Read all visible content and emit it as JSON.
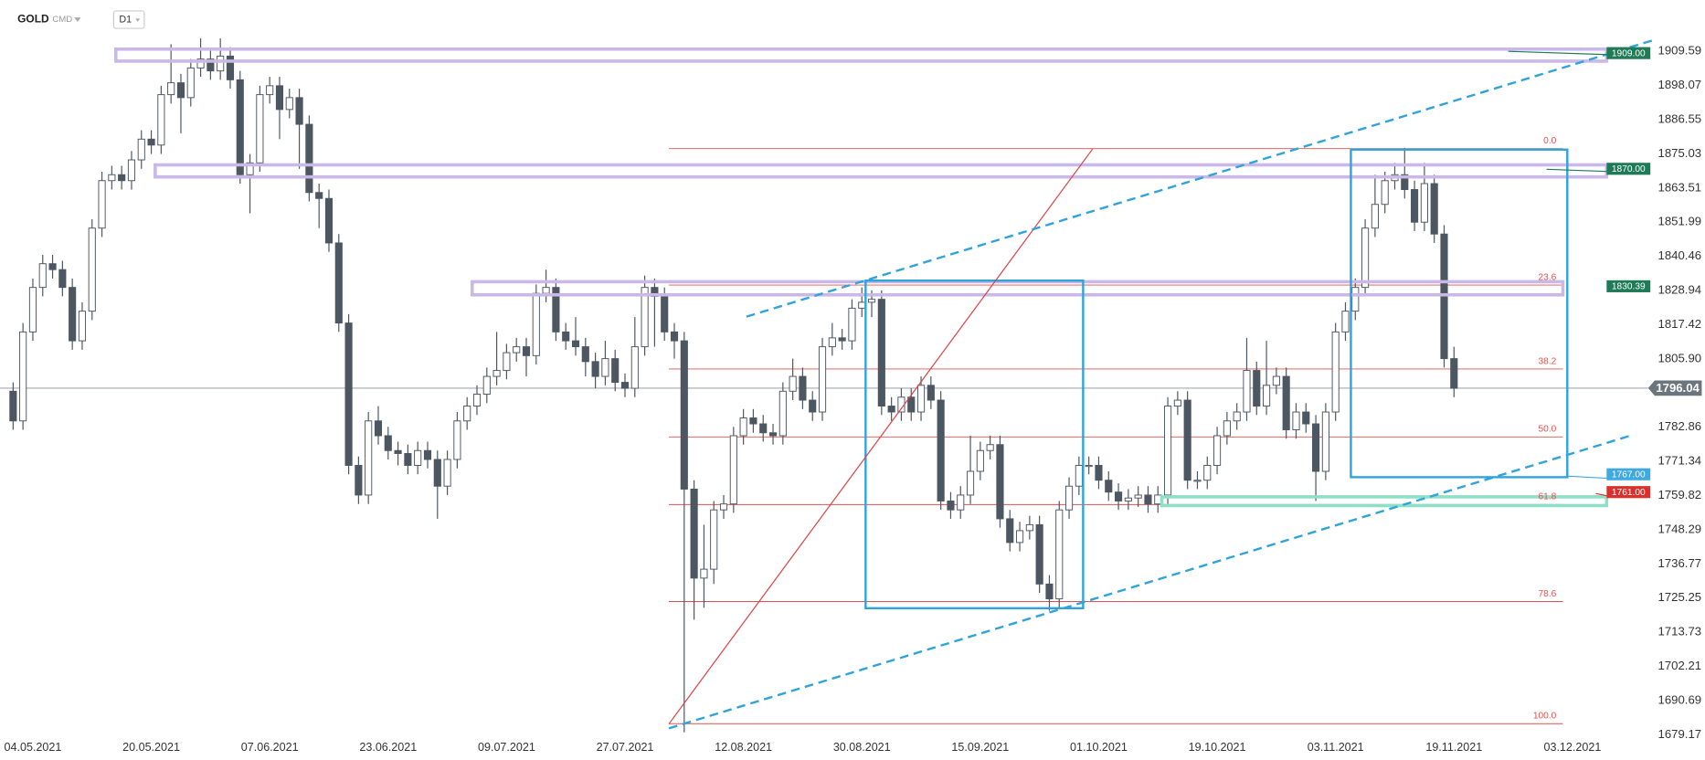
{
  "chart_data": {
    "type": "candlestick",
    "title": "GOLD",
    "subtitle": "CMD",
    "timeframe": "D1",
    "categories": [
      null,
      null,
      "04.05.2021",
      null,
      null,
      null,
      null,
      null,
      null,
      null,
      null,
      null,
      null,
      null,
      "20.05.2021",
      null,
      null,
      null,
      null,
      null,
      null,
      null,
      null,
      null,
      null,
      null,
      "07.06.2021",
      null,
      null,
      null,
      null,
      null,
      null,
      null,
      null,
      null,
      null,
      null,
      "23.06.2021",
      null,
      null,
      null,
      null,
      null,
      null,
      null,
      null,
      null,
      null,
      null,
      "09.07.2021",
      null,
      null,
      null,
      null,
      null,
      null,
      null,
      null,
      null,
      null,
      null,
      "27.07.2021",
      null,
      null,
      null,
      null,
      null,
      null,
      null,
      null,
      null,
      null,
      null,
      "12.08.2021",
      null,
      null,
      null,
      null,
      null,
      null,
      null,
      null,
      null,
      null,
      null,
      "30.08.2021",
      null,
      null,
      null,
      null,
      null,
      null,
      null,
      null,
      null,
      null,
      null,
      "15.09.2021",
      null,
      null,
      null,
      null,
      null,
      null,
      null,
      null,
      null,
      null,
      null,
      "01.10.2021",
      null,
      null,
      null,
      null,
      null,
      null,
      null,
      null,
      null,
      null,
      null,
      "19.10.2021",
      null,
      null,
      null,
      null,
      null,
      null,
      null,
      null,
      null,
      null,
      null,
      "03.11.2021",
      null,
      null,
      null,
      null,
      null,
      null,
      null,
      null,
      null,
      null,
      null,
      "19.11.2021",
      null,
      null,
      null,
      null,
      null,
      null,
      null,
      null,
      null,
      null,
      null,
      "03.12.2021"
    ],
    "open": [
      1795,
      1785,
      1815,
      1830,
      1838,
      1836,
      1830,
      1812,
      1822,
      1850,
      1866,
      1868,
      1866,
      1873,
      1880,
      1878,
      1895,
      1899,
      1894,
      1904,
      1907,
      1903,
      1908,
      1900,
      1868,
      1872,
      1895,
      1898,
      1890,
      1894,
      1885,
      1862,
      1860,
      1845,
      1818,
      1770,
      1760,
      1785,
      1780,
      1775,
      1774,
      1770,
      1775,
      1772,
      1763,
      1772,
      1785,
      1790,
      1794,
      1800,
      1802,
      1808,
      1810,
      1807,
      1828,
      1830,
      1815,
      1812,
      1810,
      1805,
      1800,
      1806,
      1798,
      1796,
      1810,
      1830,
      1827,
      1815,
      1812,
      1762,
      1732,
      1735,
      1755,
      1757,
      1780,
      1786,
      1784,
      1781,
      1780,
      1795,
      1800,
      1792,
      1788,
      1810,
      1813,
      1812,
      1823,
      1825,
      1826,
      1790,
      1788,
      1793,
      1788,
      1797,
      1792,
      1758,
      1755,
      1760,
      1768,
      1775,
      1777,
      1752,
      1744,
      1748,
      1750,
      1730,
      1725,
      1755,
      1763,
      1770,
      1770,
      1765,
      1761,
      1758,
      1759,
      1760,
      1757,
      1760,
      1790,
      1792,
      1765,
      1765,
      1770,
      1780,
      1785,
      1788,
      1802,
      1790,
      1797,
      1800,
      1782,
      1788,
      1784,
      1768,
      1788,
      1815,
      1822,
      1830,
      1850,
      1858,
      1866,
      1868,
      1863,
      1852,
      1865,
      1848,
      1806,
      null,
      null,
      null,
      null,
      null,
      null,
      null,
      null,
      null,
      null,
      null,
      null
    ],
    "high": [
      1798,
      1818,
      1833,
      1841,
      1841,
      1839,
      1833,
      1825,
      1853,
      1869,
      1871,
      1871,
      1876,
      1883,
      1883,
      1898,
      1912,
      1902,
      1907,
      1914,
      1910,
      1914,
      1911,
      1903,
      1875,
      1898,
      1901,
      1901,
      1897,
      1897,
      1888,
      1865,
      1863,
      1848,
      1821,
      1773,
      1788,
      1790,
      1783,
      1778,
      1777,
      1778,
      1778,
      1775,
      1775,
      1788,
      1793,
      1797,
      1803,
      1815,
      1811,
      1813,
      1813,
      1831,
      1836,
      1833,
      1818,
      1820,
      1813,
      1808,
      1812,
      1809,
      1801,
      1820,
      1834,
      1833,
      1830,
      1818,
      1815,
      1765,
      1750,
      1758,
      1760,
      1783,
      1789,
      1789,
      1787,
      1784,
      1798,
      1806,
      1803,
      1795,
      1813,
      1818,
      1816,
      1826,
      1830,
      1829,
      1829,
      1793,
      1796,
      1796,
      1800,
      1800,
      1795,
      1761,
      1763,
      1780,
      1778,
      1780,
      1780,
      1755,
      1751,
      1753,
      1753,
      1733,
      1758,
      1766,
      1773,
      1773,
      1773,
      1768,
      1764,
      1762,
      1763,
      1763,
      1763,
      1793,
      1795,
      1795,
      1768,
      1773,
      1783,
      1788,
      1791,
      1813,
      1805,
      1812,
      1803,
      1803,
      1791,
      1791,
      1787,
      1791,
      1818,
      1825,
      1833,
      1853,
      1868,
      1869,
      1872,
      1877,
      1866,
      1872,
      1868,
      1851,
      1810,
      null,
      null,
      null,
      null,
      null,
      null,
      null,
      null,
      null,
      null,
      null,
      null
    ],
    "low": [
      1782,
      1782,
      1812,
      1827,
      1833,
      1827,
      1809,
      1809,
      1819,
      1847,
      1863,
      1863,
      1863,
      1870,
      1875,
      1875,
      1892,
      1882,
      1891,
      1901,
      1900,
      1900,
      1897,
      1865,
      1855,
      1869,
      1892,
      1880,
      1887,
      1870,
      1859,
      1850,
      1842,
      1815,
      1767,
      1757,
      1757,
      1777,
      1772,
      1770,
      1767,
      1767,
      1769,
      1752,
      1760,
      1769,
      1782,
      1787,
      1791,
      1797,
      1799,
      1805,
      1800,
      1804,
      1825,
      1812,
      1809,
      1807,
      1800,
      1796,
      1797,
      1795,
      1793,
      1793,
      1807,
      1810,
      1812,
      1806,
      1680,
      1718,
      1722,
      1730,
      1752,
      1754,
      1777,
      1781,
      1778,
      1777,
      1777,
      1792,
      1789,
      1785,
      1785,
      1807,
      1809,
      1809,
      1820,
      1820,
      1787,
      1785,
      1785,
      1785,
      1785,
      1789,
      1755,
      1752,
      1752,
      1757,
      1765,
      1772,
      1749,
      1741,
      1741,
      1745,
      1727,
      1721,
      1722,
      1752,
      1760,
      1767,
      1762,
      1758,
      1755,
      1755,
      1756,
      1754,
      1754,
      1757,
      1787,
      1762,
      1762,
      1762,
      1767,
      1777,
      1782,
      1785,
      1787,
      1787,
      1794,
      1779,
      1779,
      1781,
      1758,
      1765,
      1785,
      1812,
      1819,
      1827,
      1847,
      1855,
      1863,
      1860,
      1849,
      1849,
      1845,
      1803,
      1793,
      null,
      null,
      null,
      null,
      null,
      null,
      null,
      null,
      null,
      null,
      null,
      null
    ],
    "close": [
      1785,
      1815,
      1830,
      1838,
      1836,
      1830,
      1812,
      1822,
      1850,
      1866,
      1868,
      1866,
      1873,
      1880,
      1878,
      1895,
      1899,
      1894,
      1904,
      1907,
      1903,
      1908,
      1900,
      1868,
      1872,
      1895,
      1898,
      1890,
      1894,
      1885,
      1862,
      1860,
      1845,
      1818,
      1770,
      1760,
      1785,
      1780,
      1775,
      1774,
      1770,
      1775,
      1772,
      1763,
      1772,
      1785,
      1790,
      1794,
      1800,
      1802,
      1808,
      1810,
      1807,
      1828,
      1830,
      1815,
      1812,
      1810,
      1805,
      1800,
      1806,
      1798,
      1796,
      1810,
      1830,
      1827,
      1815,
      1812,
      1762,
      1732,
      1735,
      1755,
      1757,
      1780,
      1786,
      1784,
      1781,
      1780,
      1795,
      1800,
      1792,
      1788,
      1810,
      1813,
      1812,
      1823,
      1825,
      1826,
      1790,
      1788,
      1793,
      1788,
      1797,
      1792,
      1758,
      1755,
      1760,
      1768,
      1775,
      1777,
      1752,
      1744,
      1748,
      1750,
      1730,
      1725,
      1755,
      1763,
      1770,
      1770,
      1765,
      1761,
      1758,
      1759,
      1760,
      1757,
      1760,
      1790,
      1792,
      1765,
      1765,
      1770,
      1780,
      1785,
      1788,
      1802,
      1790,
      1797,
      1800,
      1782,
      1788,
      1784,
      1768,
      1788,
      1815,
      1822,
      1830,
      1850,
      1858,
      1866,
      1868,
      1863,
      1852,
      1865,
      1848,
      1806,
      1796,
      null,
      null,
      null,
      null,
      null,
      null,
      null,
      null,
      null,
      null,
      null,
      null
    ],
    "up_color": "#ffffff",
    "down_color": "#4d5761",
    "ylim": [
      1678.4,
      1916.6
    ],
    "yticks": [
      1679.17,
      1690.69,
      1702.21,
      1713.73,
      1725.25,
      1736.77,
      1748.29,
      1759.82,
      1771.34,
      1782.86,
      {
        "value": 1805.9,
        "label": "1805.90"
      },
      1817.42,
      1828.94,
      1840.46,
      1851.99,
      1863.51,
      1875.03,
      1886.55,
      1898.07,
      1909.59
    ],
    "grid": false,
    "current_price": {
      "value": 1796.04,
      "color": "#6b757e"
    },
    "levels": [
      {
        "value": 1909,
        "label": "1909.00",
        "color": "#1e7b55"
      },
      {
        "value": 1870,
        "label": "1870.00",
        "color": "#1e7b55"
      },
      {
        "value": 1830.39,
        "color": "#1e7b55"
      },
      {
        "value": 1767,
        "label": "1767.00",
        "color": "#3fa9e0"
      },
      {
        "value": 1761,
        "label": "1761.00",
        "color": "#d9302c"
      }
    ],
    "fib_levels": [
      {
        "label": "0.0",
        "value": 1876.8
      },
      {
        "label": "23.6",
        "value": 1830.8
      },
      {
        "label": "38.2",
        "value": 1802.5
      },
      {
        "label": "50.0",
        "value": 1779.6
      },
      {
        "label": "61.8",
        "value": 1756.8
      },
      {
        "label": "78.6",
        "value": 1724.1
      },
      {
        "label": "100.0",
        "value": 1682.9
      }
    ],
    "fib_color": "#e05050"
  }
}
